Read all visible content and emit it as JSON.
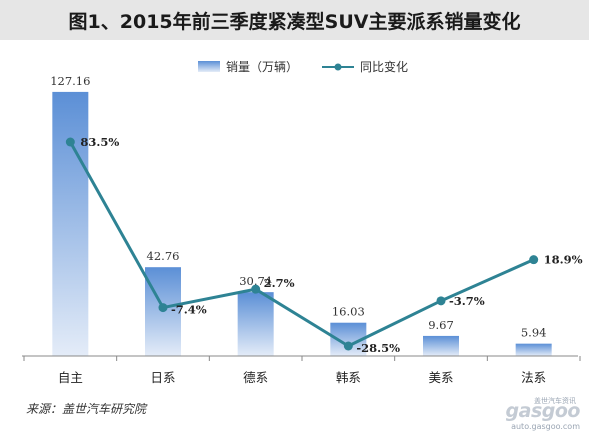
{
  "title": "图1、2015年前三季度紧凑型SUV主要派系销量变化",
  "source": "来源：盖世汽车研究院",
  "watermark": {
    "top": "盖世汽车资讯",
    "logo": "gasgoo",
    "url": "auto.gasgoo.com"
  },
  "colors": {
    "bar_top": "#5b8fd6",
    "bar_bottom": "#e4ecf8",
    "line": "#2e8394",
    "title_bg": "#e6e6e6"
  },
  "chart_data": {
    "type": "bar",
    "categories": [
      "自主",
      "日系",
      "德系",
      "韩系",
      "美系",
      "法系"
    ],
    "series": [
      {
        "name": "销量（万辆）",
        "type": "bar",
        "values": [
          127.16,
          42.76,
          30.74,
          16.03,
          9.67,
          5.94
        ],
        "labels": [
          "127.16",
          "42.76",
          "30.74",
          "16.03",
          "9.67",
          "5.94"
        ]
      },
      {
        "name": "同比变化",
        "type": "line",
        "values": [
          83.5,
          -7.4,
          2.7,
          -28.5,
          -3.7,
          18.9
        ],
        "labels": [
          "83.5%",
          "-7.4%",
          "2.7%",
          "-28.5%",
          "-3.7%",
          "18.9%"
        ]
      }
    ],
    "ylim": [
      0,
      130
    ],
    "y2lim": [
      -35,
      110
    ],
    "legend": "top-center",
    "grid": false
  }
}
